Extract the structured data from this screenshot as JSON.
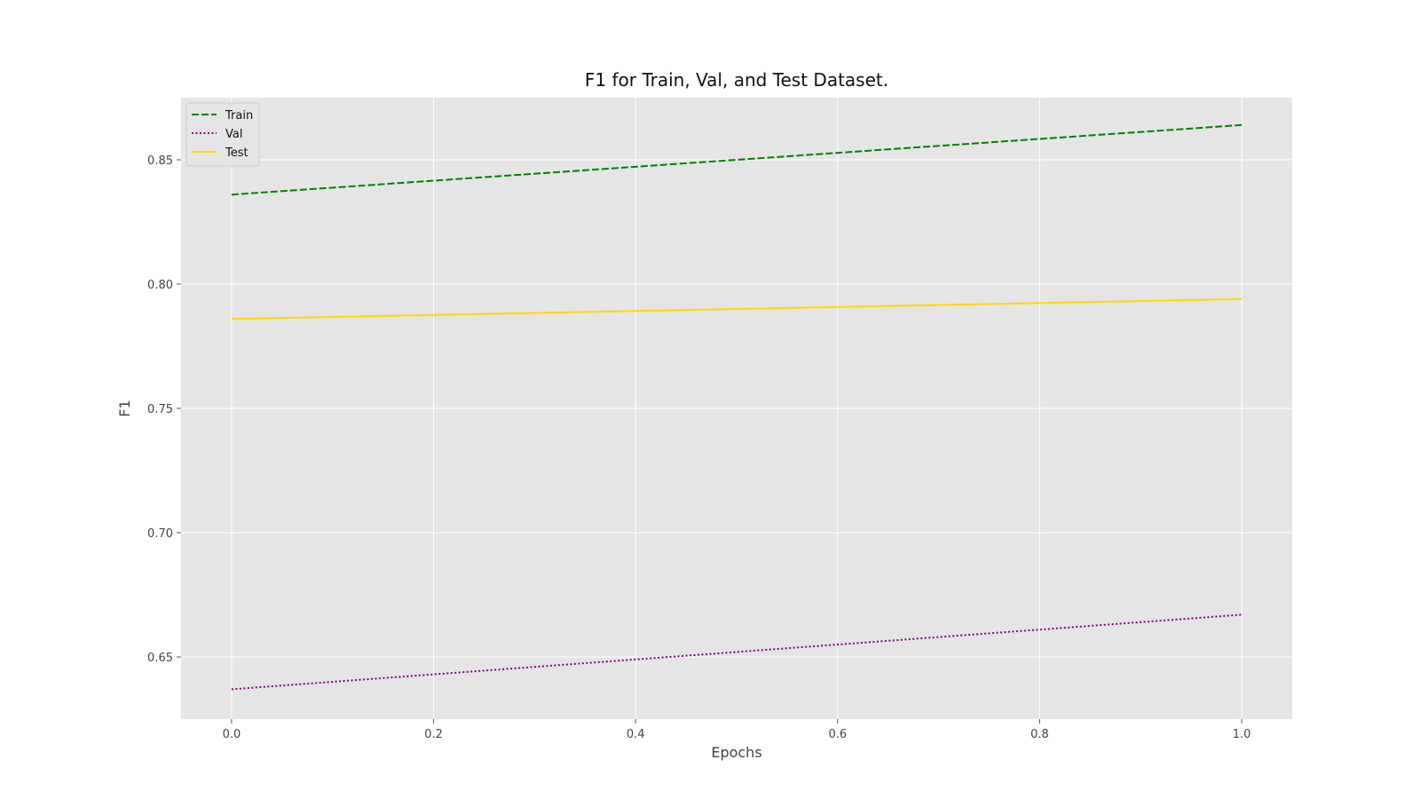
{
  "chart_data": {
    "type": "line",
    "title": "F1 for Train, Val, and Test Dataset.",
    "xlabel": "Epochs",
    "ylabel": "F1",
    "x": [
      0.0,
      1.0
    ],
    "xlim": [
      -0.05,
      1.05
    ],
    "ylim": [
      0.625,
      0.875
    ],
    "xticks": [
      "0.0",
      "0.2",
      "0.4",
      "0.6",
      "0.8",
      "1.0"
    ],
    "yticks": [
      "0.65",
      "0.70",
      "0.75",
      "0.80",
      "0.85"
    ],
    "grid": true,
    "legend_position": "top-left",
    "background_color": "#e5e5e5",
    "series": [
      {
        "name": "Train",
        "values": [
          0.836,
          0.864
        ],
        "color": "#008000",
        "style": "dashed"
      },
      {
        "name": "Val",
        "values": [
          0.637,
          0.667
        ],
        "color": "#800080",
        "style": "dotted"
      },
      {
        "name": "Test",
        "values": [
          0.786,
          0.794
        ],
        "color": "#ffd700",
        "style": "solid"
      }
    ]
  }
}
